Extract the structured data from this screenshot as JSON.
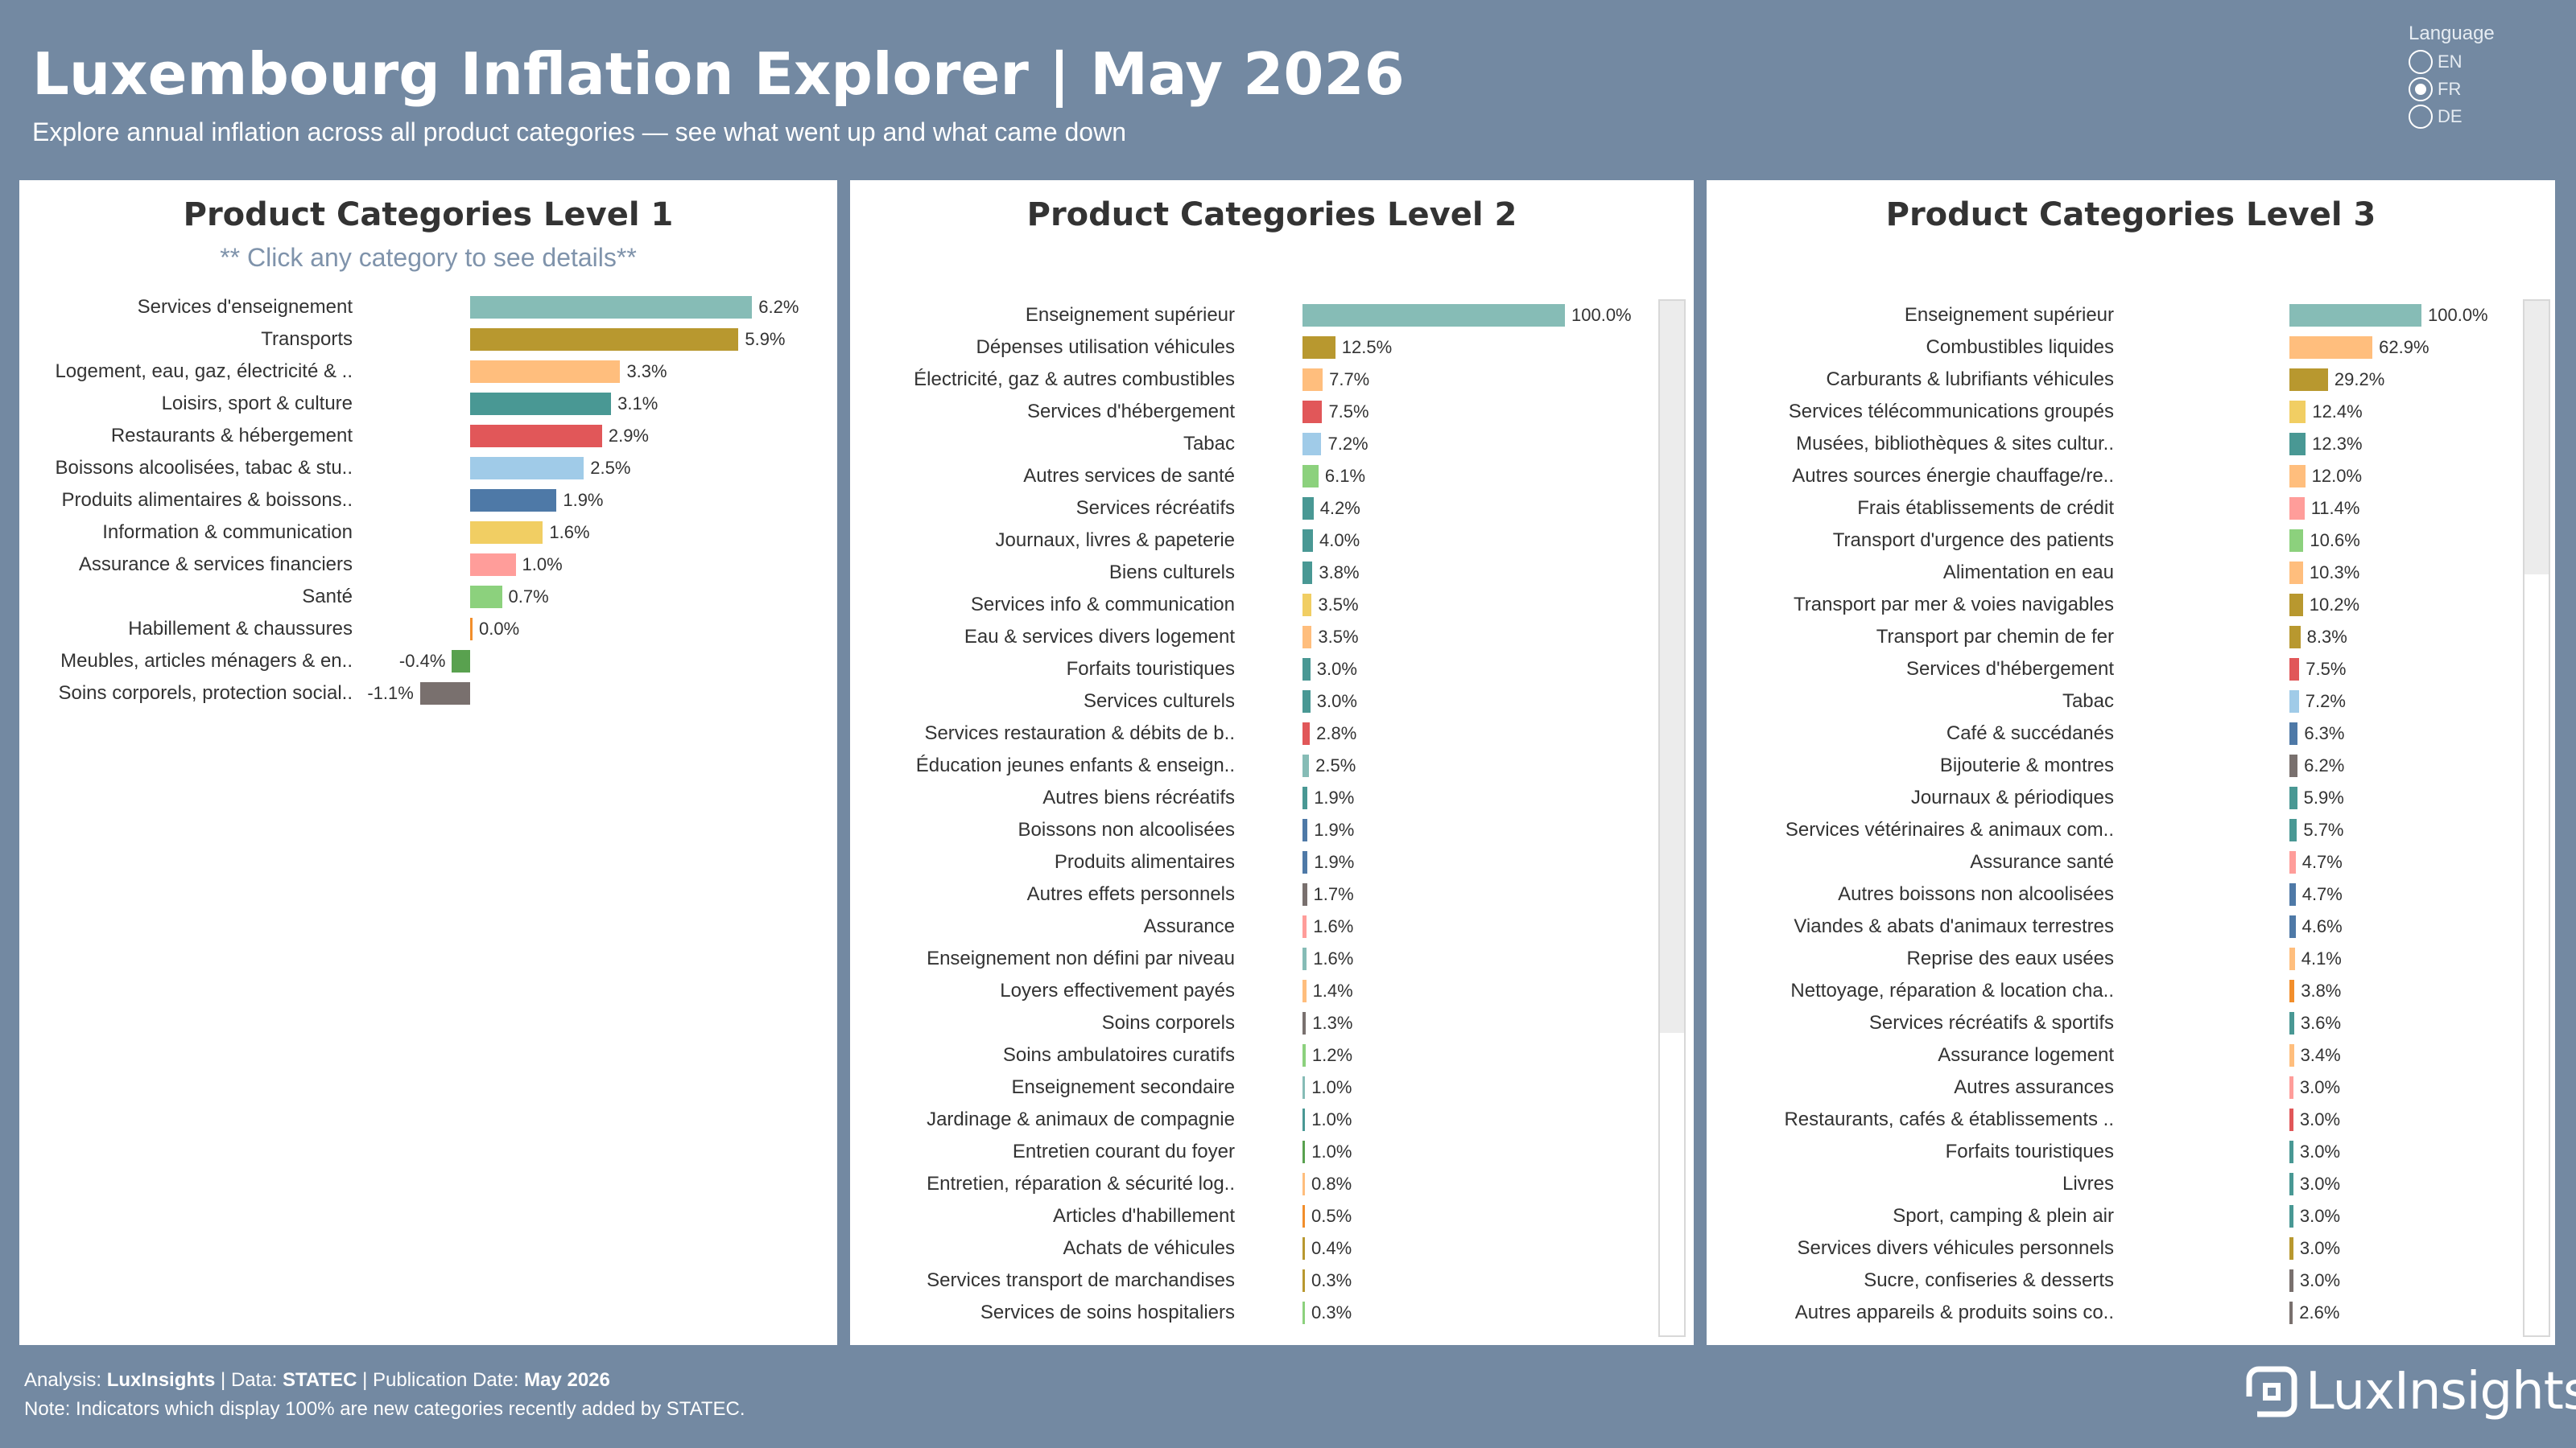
{
  "header": {
    "title": "Luxembourg Inflation Explorer | May 2026",
    "subtitle": "Explore annual inflation across all product categories — see what went up and what came down"
  },
  "language": {
    "label": "Language",
    "options": [
      "EN",
      "FR",
      "DE"
    ],
    "selected": "FR"
  },
  "panel1": {
    "title": "Product Categories Level 1",
    "hint": "** Click any category to see details**"
  },
  "panel2": {
    "title": "Product Categories Level 2"
  },
  "panel3": {
    "title": "Product Categories Level 3"
  },
  "footer": {
    "analysis_label": "Analysis: ",
    "analysis_value": "LuxInsights",
    "data_label": " | Data: ",
    "data_value": "STATEC",
    "pub_label": " | Publication Date: ",
    "pub_value": "May 2026",
    "note": "Note: Indicators which display 100% are new categories recently added by STATEC."
  },
  "logo": {
    "text": "LuxInsights",
    "icon": "luxinsights-logo-icon"
  },
  "chart_data": [
    {
      "type": "bar",
      "orientation": "horizontal",
      "title": "Product Categories Level 1",
      "unit": "%",
      "categories": [
        "Services d'enseignement",
        "Transports",
        "Logement, eau, gaz, électricité & ..",
        "Loisirs, sport & culture",
        "Restaurants & hébergement",
        "Boissons alcoolisées, tabac & stu..",
        "Produits alimentaires & boissons..",
        "Information & communication",
        "Assurance & services financiers",
        "Santé",
        "Habillement & chaussures",
        "Meubles, articles ménagers & en..",
        "Soins corporels, protection social.."
      ],
      "values": [
        6.2,
        5.9,
        3.3,
        3.1,
        2.9,
        2.5,
        1.9,
        1.6,
        1.0,
        0.7,
        0.0,
        -0.4,
        -1.1
      ],
      "labels": [
        "6.2%",
        "5.9%",
        "3.3%",
        "3.1%",
        "2.9%",
        "2.5%",
        "1.9%",
        "1.6%",
        "1.0%",
        "0.7%",
        "0.0%",
        "-0.4%",
        "-1.1%"
      ],
      "colors": [
        "#86bcb6",
        "#b8982f",
        "#ffbe7d",
        "#499894",
        "#e15759",
        "#a0cbe8",
        "#4e79a7",
        "#f1ce63",
        "#ff9d9a",
        "#8cd17d",
        "#f28e2b",
        "#59a14f",
        "#79706e"
      ]
    },
    {
      "type": "bar",
      "orientation": "horizontal",
      "title": "Product Categories Level 2",
      "unit": "%",
      "categories": [
        "Enseignement supérieur",
        "Dépenses utilisation véhicules",
        "Électricité, gaz & autres combustibles",
        "Services d'hébergement",
        "Tabac",
        "Autres services de santé",
        "Services récréatifs",
        "Journaux, livres & papeterie",
        "Biens culturels",
        "Services info & communication",
        "Eau & services divers logement",
        "Forfaits touristiques",
        "Services culturels",
        "Services restauration & débits de b..",
        "Éducation jeunes enfants & enseign..",
        "Autres biens récréatifs",
        "Boissons non alcoolisées",
        "Produits alimentaires",
        "Autres effets personnels",
        "Assurance",
        "Enseignement non défini par niveau",
        "Loyers effectivement payés",
        "Soins corporels",
        "Soins ambulatoires curatifs",
        "Enseignement secondaire",
        "Jardinage & animaux de compagnie",
        "Entretien courant du foyer",
        "Entretien, réparation & sécurité log..",
        "Articles d'habillement",
        "Achats de véhicules",
        "Services transport de marchandises",
        "Services de soins hospitaliers"
      ],
      "values": [
        100.0,
        12.5,
        7.7,
        7.5,
        7.2,
        6.1,
        4.2,
        4.0,
        3.8,
        3.5,
        3.5,
        3.0,
        3.0,
        2.8,
        2.5,
        1.9,
        1.9,
        1.9,
        1.7,
        1.6,
        1.6,
        1.4,
        1.3,
        1.2,
        1.0,
        1.0,
        1.0,
        0.8,
        0.5,
        0.4,
        0.3,
        0.3
      ],
      "labels": [
        "100.0%",
        "12.5%",
        "7.7%",
        "7.5%",
        "7.2%",
        "6.1%",
        "4.2%",
        "4.0%",
        "3.8%",
        "3.5%",
        "3.5%",
        "3.0%",
        "3.0%",
        "2.8%",
        "2.5%",
        "1.9%",
        "1.9%",
        "1.9%",
        "1.7%",
        "1.6%",
        "1.6%",
        "1.4%",
        "1.3%",
        "1.2%",
        "1.0%",
        "1.0%",
        "1.0%",
        "0.8%",
        "0.5%",
        "0.4%",
        "0.3%",
        "0.3%"
      ],
      "colors": [
        "#86bcb6",
        "#b8982f",
        "#ffbe7d",
        "#e15759",
        "#a0cbe8",
        "#8cd17d",
        "#499894",
        "#499894",
        "#499894",
        "#f1ce63",
        "#ffbe7d",
        "#499894",
        "#499894",
        "#e15759",
        "#86bcb6",
        "#499894",
        "#4e79a7",
        "#4e79a7",
        "#79706e",
        "#ff9d9a",
        "#86bcb6",
        "#ffbe7d",
        "#79706e",
        "#8cd17d",
        "#86bcb6",
        "#499894",
        "#59a14f",
        "#ffbe7d",
        "#f28e2b",
        "#b8982f",
        "#b8982f",
        "#8cd17d"
      ]
    },
    {
      "type": "bar",
      "orientation": "horizontal",
      "title": "Product Categories Level 3",
      "unit": "%",
      "categories": [
        "Enseignement supérieur",
        "Combustibles liquides",
        "Carburants & lubrifiants véhicules",
        "Services télécommunications groupés",
        "Musées, bibliothèques & sites cultur..",
        "Autres sources énergie chauffage/re..",
        "Frais établissements de crédit",
        "Transport d'urgence des patients",
        "Alimentation en eau",
        "Transport par mer & voies navigables",
        "Transport par chemin de fer",
        "Services d'hébergement",
        "Tabac",
        "Café & succédanés",
        "Bijouterie & montres",
        "Journaux & périodiques",
        "Services vétérinaires & animaux com..",
        "Assurance santé",
        "Autres boissons non alcoolisées",
        "Viandes & abats d'animaux terrestres",
        "Reprise des eaux usées",
        "Nettoyage, réparation & location cha..",
        "Services récréatifs & sportifs",
        "Assurance logement",
        "Autres assurances",
        "Restaurants, cafés & établissements ..",
        "Forfaits touristiques",
        "Livres",
        "Sport, camping & plein air",
        "Services divers véhicules personnels",
        "Sucre, confiseries & desserts",
        "Autres appareils & produits soins co.."
      ],
      "values": [
        100.0,
        62.9,
        29.2,
        12.4,
        12.3,
        12.0,
        11.4,
        10.6,
        10.3,
        10.2,
        8.3,
        7.5,
        7.2,
        6.3,
        6.2,
        5.9,
        5.7,
        4.7,
        4.7,
        4.6,
        4.1,
        3.8,
        3.6,
        3.4,
        3.0,
        3.0,
        3.0,
        3.0,
        3.0,
        3.0,
        3.0,
        2.6
      ],
      "labels": [
        "100.0%",
        "62.9%",
        "29.2%",
        "12.4%",
        "12.3%",
        "12.0%",
        "11.4%",
        "10.6%",
        "10.3%",
        "10.2%",
        "8.3%",
        "7.5%",
        "7.2%",
        "6.3%",
        "6.2%",
        "5.9%",
        "5.7%",
        "4.7%",
        "4.7%",
        "4.6%",
        "4.1%",
        "3.8%",
        "3.6%",
        "3.4%",
        "3.0%",
        "3.0%",
        "3.0%",
        "3.0%",
        "3.0%",
        "3.0%",
        "3.0%",
        "2.6%"
      ],
      "colors": [
        "#86bcb6",
        "#ffbe7d",
        "#b8982f",
        "#f1ce63",
        "#499894",
        "#ffbe7d",
        "#ff9d9a",
        "#8cd17d",
        "#ffbe7d",
        "#b8982f",
        "#b8982f",
        "#e15759",
        "#a0cbe8",
        "#4e79a7",
        "#79706e",
        "#499894",
        "#499894",
        "#ff9d9a",
        "#4e79a7",
        "#4e79a7",
        "#ffbe7d",
        "#f28e2b",
        "#499894",
        "#ffbe7d",
        "#ff9d9a",
        "#e15759",
        "#499894",
        "#499894",
        "#499894",
        "#b8982f",
        "#79706e",
        "#79706e"
      ]
    }
  ]
}
